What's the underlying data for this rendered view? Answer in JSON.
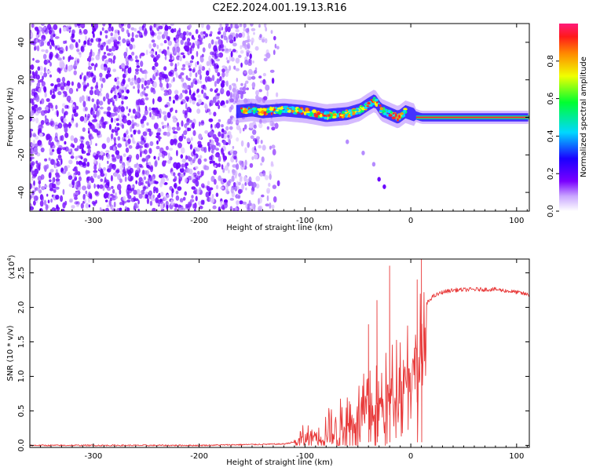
{
  "title": "C2E2.2024.001.19.13.R16",
  "colors": {
    "snr_line": "#e83a3a",
    "scatter_dense": "#6a00ff",
    "scatter_light": "#d7b8ff",
    "axis": "#000000"
  },
  "chart_data": [
    {
      "type": "heatmap",
      "name": "spectrogram",
      "xlabel": "Height of straight line (km)",
      "ylabel": "Frequency (Hz)",
      "xlim": [
        -360,
        112
      ],
      "ylim": [
        -50,
        50
      ],
      "x_ticks": [
        -300,
        -200,
        -100,
        0,
        100
      ],
      "y_ticks": [
        -40,
        -20,
        0,
        20,
        40
      ],
      "colorbar": {
        "label": "Normalized spectral amplitude",
        "range": [
          0,
          1
        ],
        "ticks": [
          "0.0",
          "0.2",
          "0.4",
          "0.6",
          "0.8"
        ],
        "colormap": [
          "#ffffff",
          "#7a00ff",
          "#0000ff",
          "#00ffff",
          "#00ff00",
          "#ffff00",
          "#ff8000",
          "#ff0000",
          "#ff1a75"
        ]
      },
      "features": {
        "noise_region_x": [
          -360,
          -125
        ],
        "signal_track": [
          [
            -165,
            3
          ],
          [
            -150,
            4
          ],
          [
            -140,
            3
          ],
          [
            -120,
            4
          ],
          [
            -100,
            3
          ],
          [
            -80,
            1
          ],
          [
            -60,
            2
          ],
          [
            -48,
            4
          ],
          [
            -40,
            7
          ],
          [
            -34,
            9
          ],
          [
            -28,
            4
          ],
          [
            -20,
            2
          ],
          [
            -12,
            0
          ],
          [
            -5,
            3
          ],
          [
            0,
            2
          ],
          [
            10,
            0
          ],
          [
            30,
            0
          ],
          [
            60,
            0
          ],
          [
            90,
            0
          ],
          [
            112,
            0
          ]
        ],
        "drift_branch": [
          [
            -60,
            -13
          ],
          [
            -45,
            -19
          ],
          [
            -35,
            -25
          ],
          [
            -30,
            -33
          ],
          [
            -25,
            -37
          ]
        ]
      }
    },
    {
      "type": "line",
      "name": "snr",
      "xlabel": "Height of straight line (km)",
      "ylabel": "SNR (10 * v/v)",
      "y_multiplier": "(x10",
      "y_multiplier_exp": "4",
      "y_multiplier_close": ")",
      "xlim": [
        -360,
        112
      ],
      "ylim": [
        -0.03,
        2.7
      ],
      "x_ticks": [
        -300,
        -200,
        -100,
        0,
        100
      ],
      "y_ticks": [
        "0.0",
        "0.5",
        "1.0",
        "1.5",
        "2.0",
        "2.5"
      ],
      "series": [
        {
          "x": [
            -360,
            -300,
            -200,
            -120,
            -110,
            -100,
            -90,
            -80,
            -70,
            -60,
            -50,
            -40,
            -30,
            -25,
            -20,
            -15,
            -10,
            -5,
            0,
            5,
            10,
            15,
            20,
            30,
            40,
            60,
            80,
            100,
            112
          ],
          "y": [
            0.0,
            0.0,
            0.0,
            0.02,
            0.05,
            0.15,
            0.22,
            0.25,
            0.3,
            0.45,
            0.6,
            0.7,
            0.8,
            0.9,
            1.0,
            1.2,
            1.45,
            1.6,
            1.7,
            1.75,
            1.95,
            2.05,
            2.15,
            2.22,
            2.25,
            2.26,
            2.26,
            2.22,
            2.18
          ],
          "peak_spikes": [
            [
              -40,
              1.75
            ],
            [
              -32,
              2.1
            ],
            [
              -20,
              2.6
            ],
            [
              10,
              2.7
            ],
            [
              6,
              2.4
            ]
          ]
        }
      ]
    }
  ]
}
